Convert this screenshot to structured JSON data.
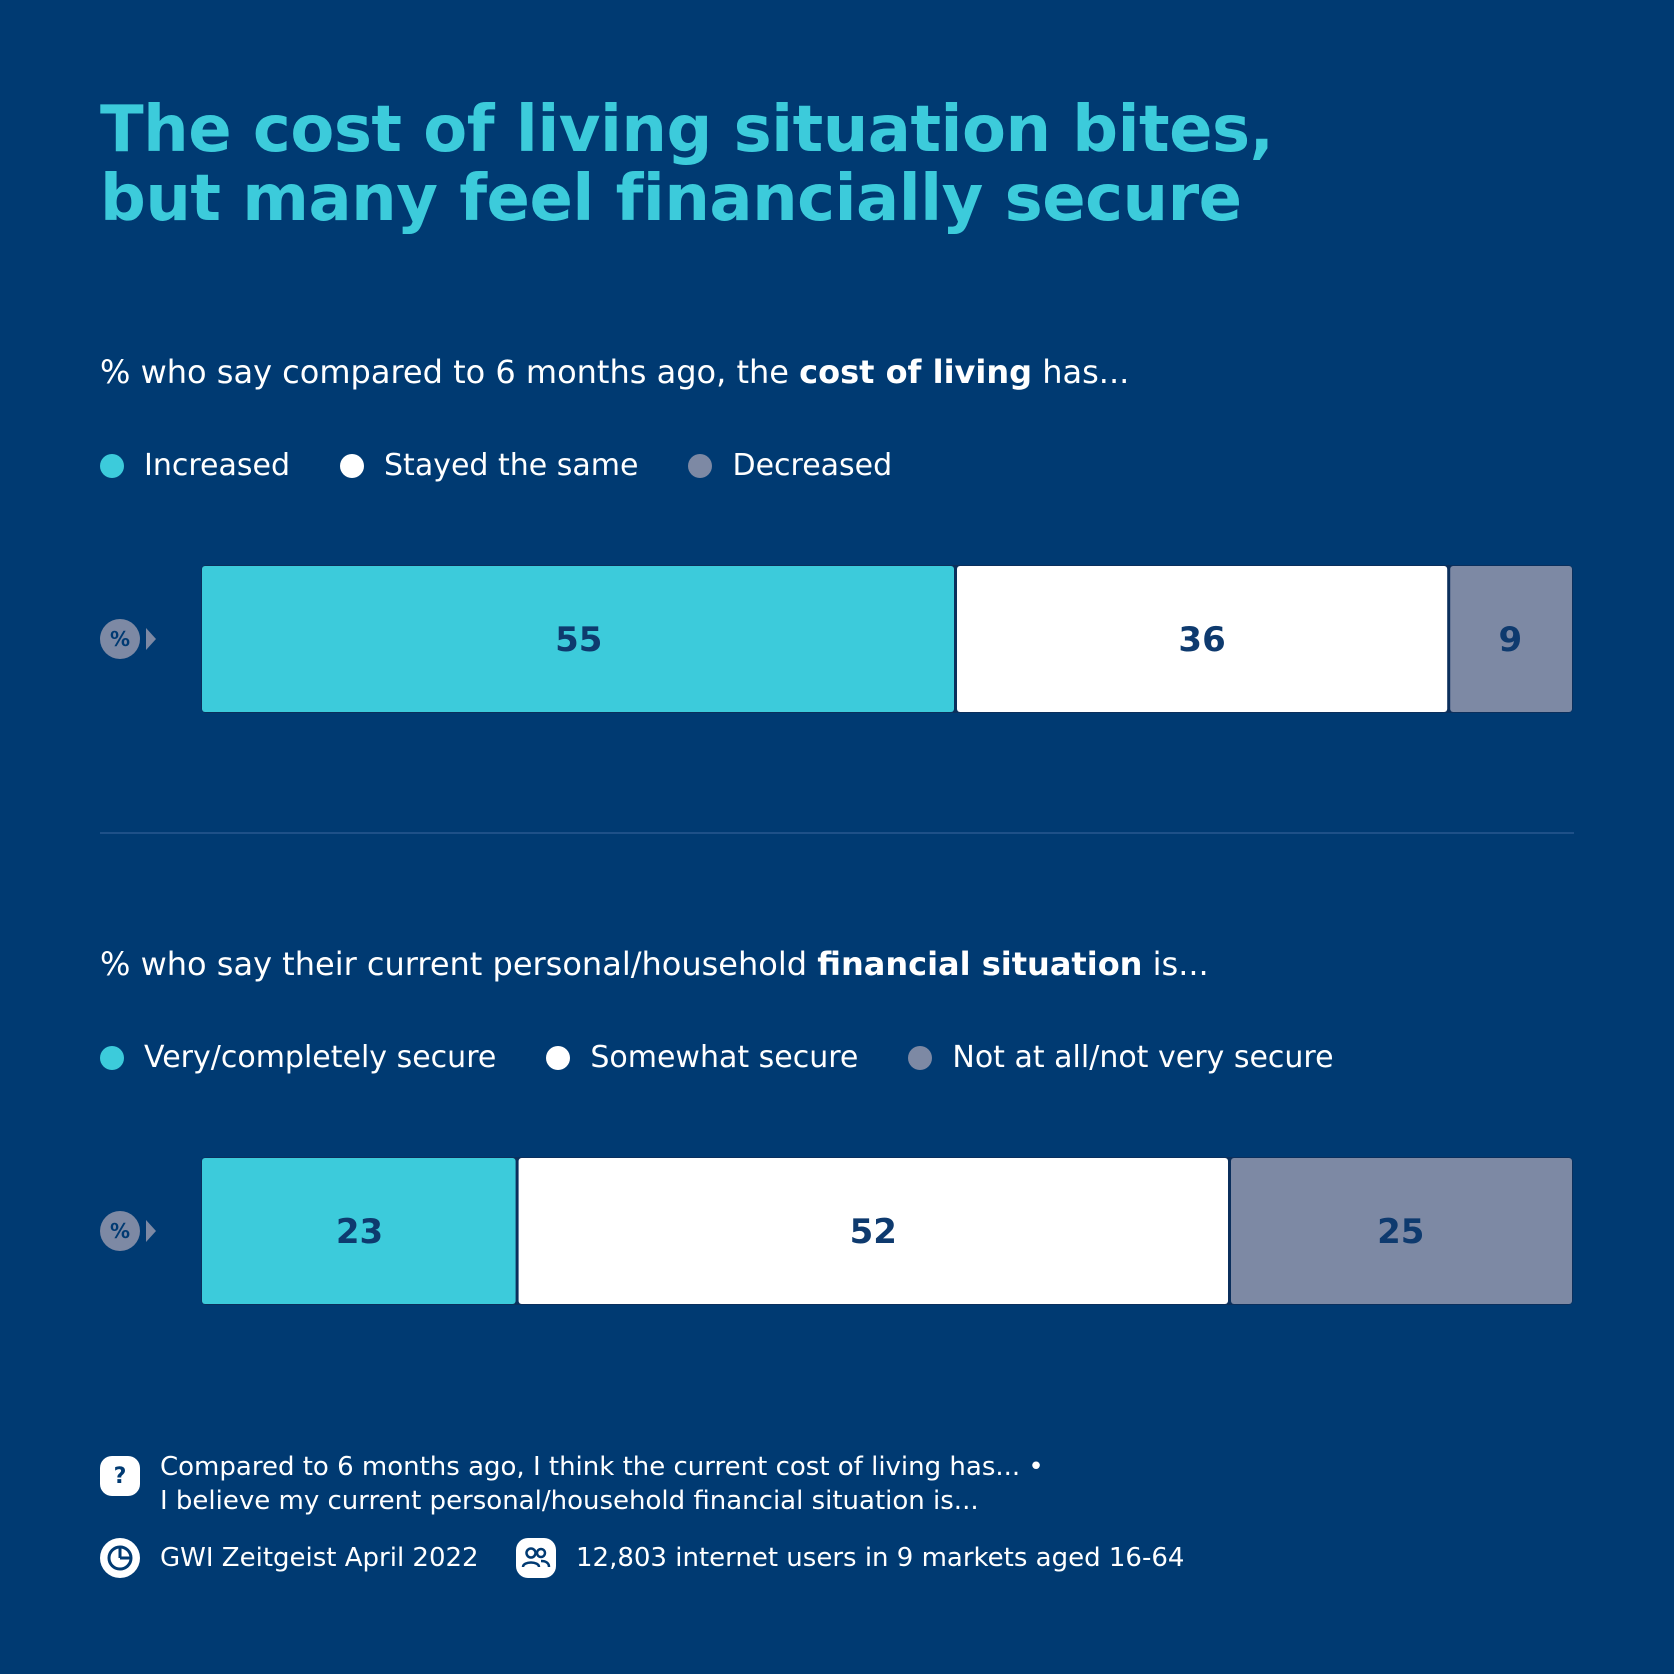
{
  "title": [
    "The cost of living situation bites,",
    "but many feel financially secure"
  ],
  "colors": {
    "background": "#003a72",
    "accent": "#3ccbdb",
    "white": "#ffffff",
    "grey": "#7d89a4",
    "value_text": "#0e3a6e"
  },
  "pct_badge": "%",
  "chart_data": [
    {
      "type": "bar",
      "stacked": true,
      "orientation": "horizontal",
      "question": {
        "pre": "% who say compared to 6 months ago, the ",
        "bold": "cost of living",
        "post": " has..."
      },
      "series": [
        {
          "name": "Increased",
          "values": [
            55
          ],
          "color": "#3ccbdb"
        },
        {
          "name": "Stayed the same",
          "values": [
            36
          ],
          "color": "#ffffff"
        },
        {
          "name": "Decreased",
          "values": [
            9
          ],
          "color": "#7d89a4"
        }
      ],
      "xlim": [
        0,
        100
      ]
    },
    {
      "type": "bar",
      "stacked": true,
      "orientation": "horizontal",
      "question": {
        "pre": "% who say their current personal/household ",
        "bold": "financial situation",
        "post": " is..."
      },
      "series": [
        {
          "name": "Very/completely secure",
          "values": [
            23
          ],
          "color": "#3ccbdb"
        },
        {
          "name": "Somewhat secure",
          "values": [
            52
          ],
          "color": "#ffffff"
        },
        {
          "name": "Not at all/not very secure",
          "values": [
            25
          ],
          "color": "#7d89a4"
        }
      ],
      "xlim": [
        0,
        100
      ]
    }
  ],
  "footer": {
    "question_icon": "question-mark-icon",
    "question_text": [
      "Compared to 6 months ago, I think the current cost of living has... •",
      "I believe my current personal/household financial situation is..."
    ],
    "source_icon": "gwi-logo-icon",
    "source": "GWI Zeitgeist April 2022",
    "audience_icon": "people-icon",
    "audience": "12,803 internet users in 9 markets aged 16-64"
  }
}
